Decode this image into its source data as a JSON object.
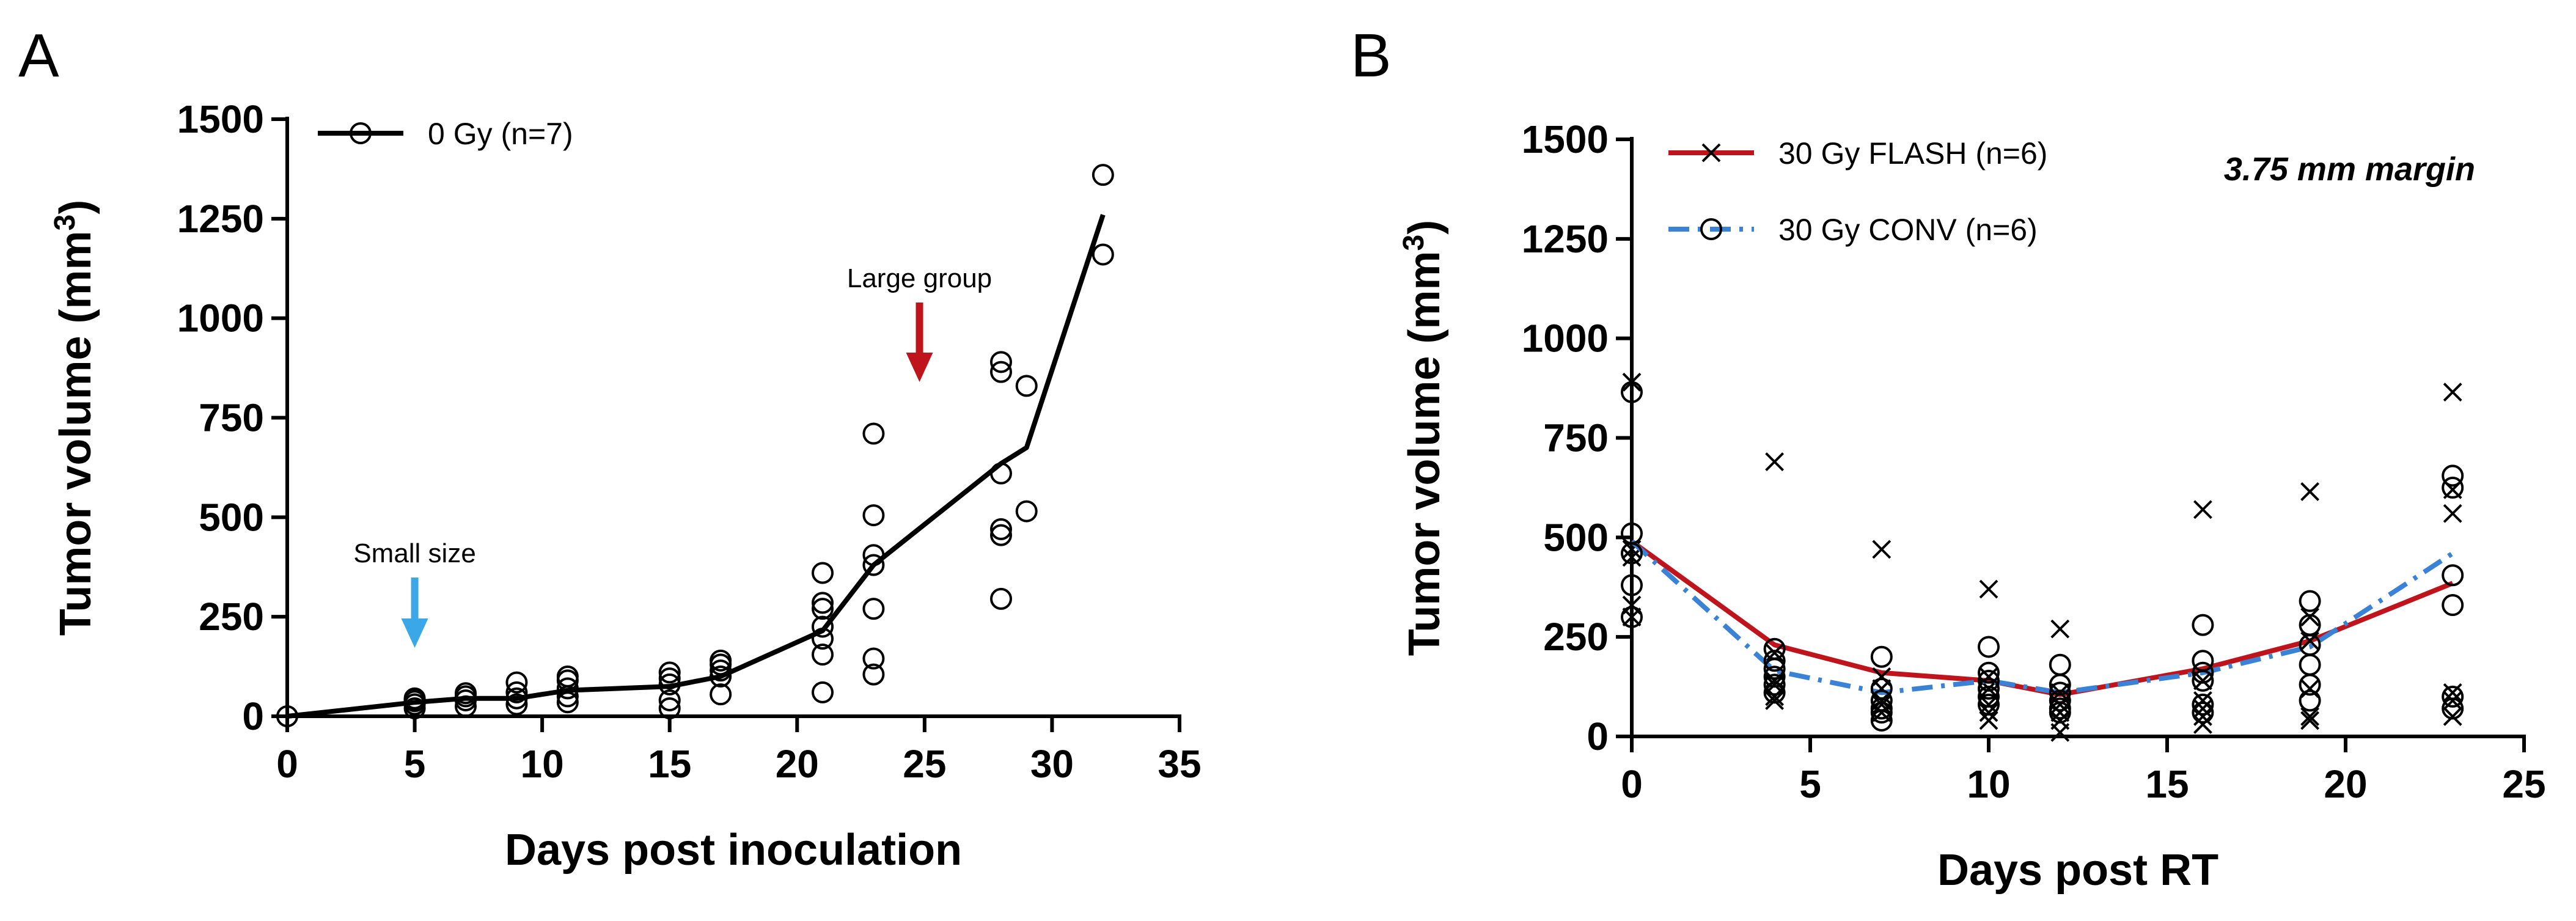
{
  "chart_data": [
    {
      "panel": "A",
      "type": "scatter",
      "xlabel": "Days post inoculation",
      "ylabel_main": "Tumor volume (mm",
      "ylabel_sup": "3",
      "ylabel_close": ")",
      "xlim": [
        0,
        35
      ],
      "ylim": [
        0,
        1500
      ],
      "xticks": [
        0,
        5,
        10,
        15,
        20,
        25,
        30,
        35
      ],
      "yticks": [
        0,
        250,
        500,
        750,
        1000,
        1250,
        1500
      ],
      "grid": false,
      "legend_position": "top-left",
      "series": [
        {
          "name": "0 Gy (n=7)",
          "color": "#000000",
          "marker": "circle",
          "line_x": [
            0,
            5,
            7,
            9,
            11,
            15,
            17,
            21,
            23,
            28,
            29,
            32
          ],
          "line_y": [
            0,
            35,
            45,
            45,
            65,
            75,
            100,
            215,
            380,
            635,
            675,
            1260
          ],
          "points": [
            [
              0,
              0
            ],
            [
              5,
              20
            ],
            [
              5,
              30
            ],
            [
              5,
              38
            ],
            [
              5,
              42
            ],
            [
              5,
              45
            ],
            [
              7,
              25
            ],
            [
              7,
              40
            ],
            [
              7,
              50
            ],
            [
              7,
              58
            ],
            [
              9,
              30
            ],
            [
              9,
              45
            ],
            [
              9,
              60
            ],
            [
              9,
              85
            ],
            [
              11,
              35
            ],
            [
              11,
              50
            ],
            [
              11,
              70
            ],
            [
              11,
              90
            ],
            [
              11,
              100
            ],
            [
              15,
              20
            ],
            [
              15,
              40
            ],
            [
              15,
              80
            ],
            [
              15,
              95
            ],
            [
              15,
              110
            ],
            [
              17,
              55
            ],
            [
              17,
              100
            ],
            [
              17,
              115
            ],
            [
              17,
              130
            ],
            [
              17,
              140
            ],
            [
              21,
              60
            ],
            [
              21,
              155
            ],
            [
              21,
              195
            ],
            [
              21,
              225
            ],
            [
              21,
              270
            ],
            [
              21,
              285
            ],
            [
              21,
              360
            ],
            [
              23,
              105
            ],
            [
              23,
              145
            ],
            [
              23,
              270
            ],
            [
              23,
              380
            ],
            [
              23,
              405
            ],
            [
              23,
              505
            ],
            [
              23,
              710
            ],
            [
              28,
              295
            ],
            [
              28,
              455
            ],
            [
              28,
              470
            ],
            [
              28,
              610
            ],
            [
              28,
              865
            ],
            [
              28,
              890
            ],
            [
              29,
              515
            ],
            [
              29,
              830
            ],
            [
              32,
              1160
            ],
            [
              32,
              1360
            ]
          ]
        }
      ],
      "annotations": [
        {
          "text": "Small size",
          "x": 5,
          "color": "#3AA8E8"
        },
        {
          "text": "Large group",
          "x": 24.8,
          "color": "#C0141C"
        }
      ]
    },
    {
      "panel": "B",
      "type": "scatter",
      "xlabel": "Days post RT",
      "ylabel_main": "Tumor volume (mm",
      "ylabel_sup": "3",
      "ylabel_close": ")",
      "xlim": [
        0,
        25
      ],
      "ylim": [
        0,
        1500
      ],
      "xticks": [
        0,
        5,
        10,
        15,
        20,
        25
      ],
      "yticks": [
        0,
        250,
        500,
        750,
        1000,
        1250,
        1500
      ],
      "grid": false,
      "legend_position": "top-left",
      "annotation": "3.75 mm margin",
      "series": [
        {
          "name": "30 Gy FLASH (n=6)",
          "color": "#C0141C",
          "marker": "x",
          "line_style": "solid",
          "line_x": [
            0,
            4,
            7,
            10,
            12,
            16,
            19,
            23
          ],
          "line_y": [
            490,
            230,
            160,
            140,
            105,
            170,
            240,
            385
          ],
          "points": [
            [
              0,
              890
            ],
            [
              0,
              470
            ],
            [
              0,
              450
            ],
            [
              0,
              330
            ],
            [
              0,
              300
            ],
            [
              4,
              690
            ],
            [
              4,
              210
            ],
            [
              4,
              140
            ],
            [
              4,
              130
            ],
            [
              4,
              100
            ],
            [
              4,
              90
            ],
            [
              7,
              470
            ],
            [
              7,
              150
            ],
            [
              7,
              120
            ],
            [
              7,
              90
            ],
            [
              7,
              80
            ],
            [
              7,
              60
            ],
            [
              10,
              370
            ],
            [
              10,
              150
            ],
            [
              10,
              120
            ],
            [
              10,
              80
            ],
            [
              10,
              60
            ],
            [
              10,
              40
            ],
            [
              12,
              270
            ],
            [
              12,
              110
            ],
            [
              12,
              80
            ],
            [
              12,
              60
            ],
            [
              12,
              40
            ],
            [
              12,
              10
            ],
            [
              16,
              570
            ],
            [
              16,
              140
            ],
            [
              16,
              90
            ],
            [
              16,
              70
            ],
            [
              16,
              50
            ],
            [
              16,
              30
            ],
            [
              19,
              615
            ],
            [
              19,
              300
            ],
            [
              19,
              240
            ],
            [
              19,
              120
            ],
            [
              19,
              50
            ],
            [
              19,
              40
            ],
            [
              23,
              865
            ],
            [
              23,
              620
            ],
            [
              23,
              560
            ],
            [
              23,
              110
            ],
            [
              23,
              90
            ],
            [
              23,
              50
            ]
          ]
        },
        {
          "name": "30 Gy CONV (n=6)",
          "color": "#3A82D6",
          "marker": "circle",
          "line_style": "dash-dot",
          "line_x": [
            0,
            4,
            7,
            10,
            12,
            16,
            19,
            23
          ],
          "line_y": [
            490,
            165,
            110,
            140,
            110,
            160,
            225,
            460
          ],
          "points": [
            [
              0,
              865
            ],
            [
              0,
              510
            ],
            [
              0,
              460
            ],
            [
              0,
              380
            ],
            [
              0,
              300
            ],
            [
              4,
              220
            ],
            [
              4,
              190
            ],
            [
              4,
              170
            ],
            [
              4,
              150
            ],
            [
              4,
              130
            ],
            [
              4,
              110
            ],
            [
              7,
              200
            ],
            [
              7,
              120
            ],
            [
              7,
              90
            ],
            [
              7,
              70
            ],
            [
              7,
              60
            ],
            [
              7,
              40
            ],
            [
              10,
              225
            ],
            [
              10,
              160
            ],
            [
              10,
              140
            ],
            [
              10,
              120
            ],
            [
              10,
              100
            ],
            [
              10,
              80
            ],
            [
              12,
              180
            ],
            [
              12,
              130
            ],
            [
              12,
              110
            ],
            [
              12,
              90
            ],
            [
              12,
              70
            ],
            [
              12,
              60
            ],
            [
              16,
              280
            ],
            [
              16,
              190
            ],
            [
              16,
              160
            ],
            [
              16,
              140
            ],
            [
              16,
              80
            ],
            [
              16,
              60
            ],
            [
              19,
              340
            ],
            [
              19,
              280
            ],
            [
              19,
              230
            ],
            [
              19,
              180
            ],
            [
              19,
              130
            ],
            [
              19,
              90
            ],
            [
              23,
              655
            ],
            [
              23,
              625
            ],
            [
              23,
              405
            ],
            [
              23,
              330
            ],
            [
              23,
              100
            ],
            [
              23,
              70
            ]
          ]
        }
      ]
    }
  ]
}
